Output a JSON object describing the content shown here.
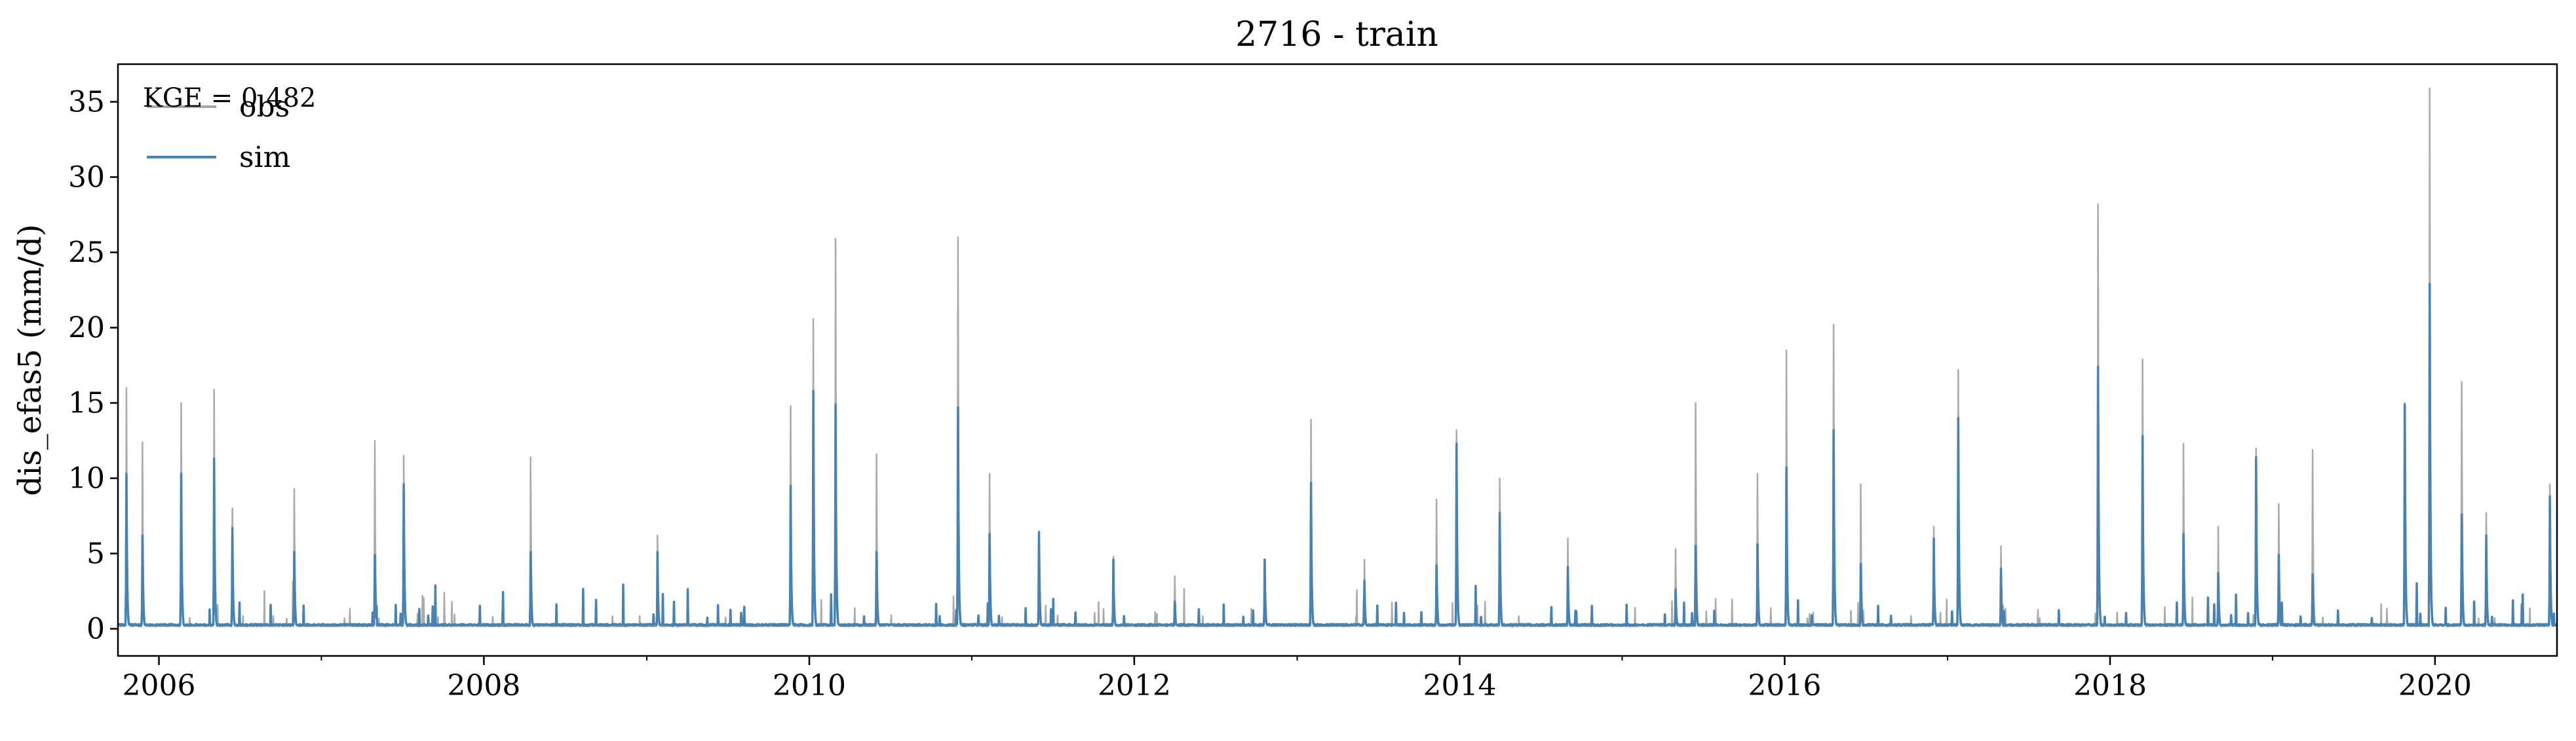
{
  "chart_data": {
    "type": "line",
    "title": "2716 - train",
    "xlabel": "",
    "ylabel": "dis_efas5 (mm/d)",
    "ylim": [
      -1.8,
      37.5
    ],
    "xlim": [
      "2005-10-01",
      "2020-10-01"
    ],
    "yticks": [
      0,
      5,
      10,
      15,
      20,
      25,
      30,
      35
    ],
    "xticks": [
      "2006",
      "2008",
      "2010",
      "2012",
      "2014",
      "2016",
      "2018",
      "2020"
    ],
    "legend_position": "top-left",
    "grid": false,
    "annotation": "KGE = 0.482",
    "series": [
      {
        "name": "obs",
        "color": "#a6a6a6",
        "baseline": 0.15,
        "peaks": [
          [
            "2005-10-20",
            16
          ],
          [
            "2005-11-25",
            12.4
          ],
          [
            "2006-02-20",
            15
          ],
          [
            "2006-05-05",
            15.9
          ],
          [
            "2006-06-15",
            8
          ],
          [
            "2006-11-01",
            9.3
          ],
          [
            "2007-05-01",
            12.5
          ],
          [
            "2007-07-05",
            11.5
          ],
          [
            "2008-04-15",
            11.4
          ],
          [
            "2009-01-25",
            6.2
          ],
          [
            "2009-11-20",
            14.8
          ],
          [
            "2010-01-10",
            20.6
          ],
          [
            "2010-03-01",
            25.9
          ],
          [
            "2010-06-01",
            11.6
          ],
          [
            "2010-12-01",
            26
          ],
          [
            "2011-02-10",
            10.3
          ],
          [
            "2011-06-01",
            6.5
          ],
          [
            "2011-11-15",
            4.8
          ],
          [
            "2012-04-01",
            3.5
          ],
          [
            "2012-10-20",
            4.6
          ],
          [
            "2013-02-01",
            13.9
          ],
          [
            "2013-06-01",
            4.6
          ],
          [
            "2013-11-10",
            8.6
          ],
          [
            "2013-12-25",
            13.2
          ],
          [
            "2014-04-01",
            10
          ],
          [
            "2014-09-01",
            6
          ],
          [
            "2015-05-01",
            5.3
          ],
          [
            "2015-06-15",
            15
          ],
          [
            "2015-11-01",
            10.3
          ],
          [
            "2016-01-05",
            18.5
          ],
          [
            "2016-04-20",
            20.2
          ],
          [
            "2016-06-20",
            9.6
          ],
          [
            "2016-12-01",
            6.8
          ],
          [
            "2017-01-25",
            17.2
          ],
          [
            "2017-05-01",
            5.5
          ],
          [
            "2017-12-05",
            28.2
          ],
          [
            "2018-03-15",
            17.9
          ],
          [
            "2018-06-15",
            12.3
          ],
          [
            "2018-09-01",
            6.8
          ],
          [
            "2018-11-25",
            12
          ],
          [
            "2019-01-15",
            8.3
          ],
          [
            "2019-04-01",
            11.9
          ],
          [
            "2019-10-25",
            15
          ],
          [
            "2019-12-20",
            35.9
          ],
          [
            "2020-03-01",
            16.4
          ],
          [
            "2020-04-25",
            7.7
          ],
          [
            "2020-09-15",
            9.6
          ]
        ]
      },
      {
        "name": "sim",
        "color": "#4682b4",
        "baseline": 0.2,
        "peaks": [
          [
            "2005-10-20",
            10.3
          ],
          [
            "2005-11-25",
            6.2
          ],
          [
            "2006-02-20",
            10.3
          ],
          [
            "2006-05-05",
            11.3
          ],
          [
            "2006-06-15",
            6.7
          ],
          [
            "2006-11-01",
            5.1
          ],
          [
            "2007-05-01",
            4.9
          ],
          [
            "2007-07-05",
            9.6
          ],
          [
            "2008-04-15",
            5.1
          ],
          [
            "2009-01-25",
            5.1
          ],
          [
            "2009-11-20",
            9.5
          ],
          [
            "2010-01-10",
            15.8
          ],
          [
            "2010-03-01",
            14.9
          ],
          [
            "2010-06-01",
            5.1
          ],
          [
            "2010-12-01",
            14.7
          ],
          [
            "2011-02-10",
            6.3
          ],
          [
            "2011-06-01",
            6.4
          ],
          [
            "2011-11-15",
            4.6
          ],
          [
            "2012-04-01",
            1.8
          ],
          [
            "2012-10-20",
            4.6
          ],
          [
            "2013-02-01",
            9.7
          ],
          [
            "2013-06-01",
            3.2
          ],
          [
            "2013-11-10",
            4.2
          ],
          [
            "2013-12-25",
            12.3
          ],
          [
            "2014-04-01",
            7.7
          ],
          [
            "2014-09-01",
            4.1
          ],
          [
            "2015-05-01",
            2.6
          ],
          [
            "2015-06-15",
            5.5
          ],
          [
            "2015-11-01",
            5.6
          ],
          [
            "2016-01-05",
            10.7
          ],
          [
            "2016-04-20",
            13.2
          ],
          [
            "2016-06-20",
            4.3
          ],
          [
            "2016-12-01",
            6
          ],
          [
            "2017-01-25",
            14
          ],
          [
            "2017-05-01",
            4
          ],
          [
            "2017-12-05",
            17.4
          ],
          [
            "2018-03-15",
            12.8
          ],
          [
            "2018-06-15",
            6.3
          ],
          [
            "2018-09-01",
            3.7
          ],
          [
            "2018-11-25",
            11.4
          ],
          [
            "2019-01-15",
            4.9
          ],
          [
            "2019-04-01",
            3.6
          ],
          [
            "2019-10-25",
            14.9
          ],
          [
            "2019-12-20",
            22.9
          ],
          [
            "2020-03-01",
            7.6
          ],
          [
            "2020-04-25",
            6.2
          ],
          [
            "2020-09-15",
            8.8
          ]
        ]
      }
    ]
  }
}
